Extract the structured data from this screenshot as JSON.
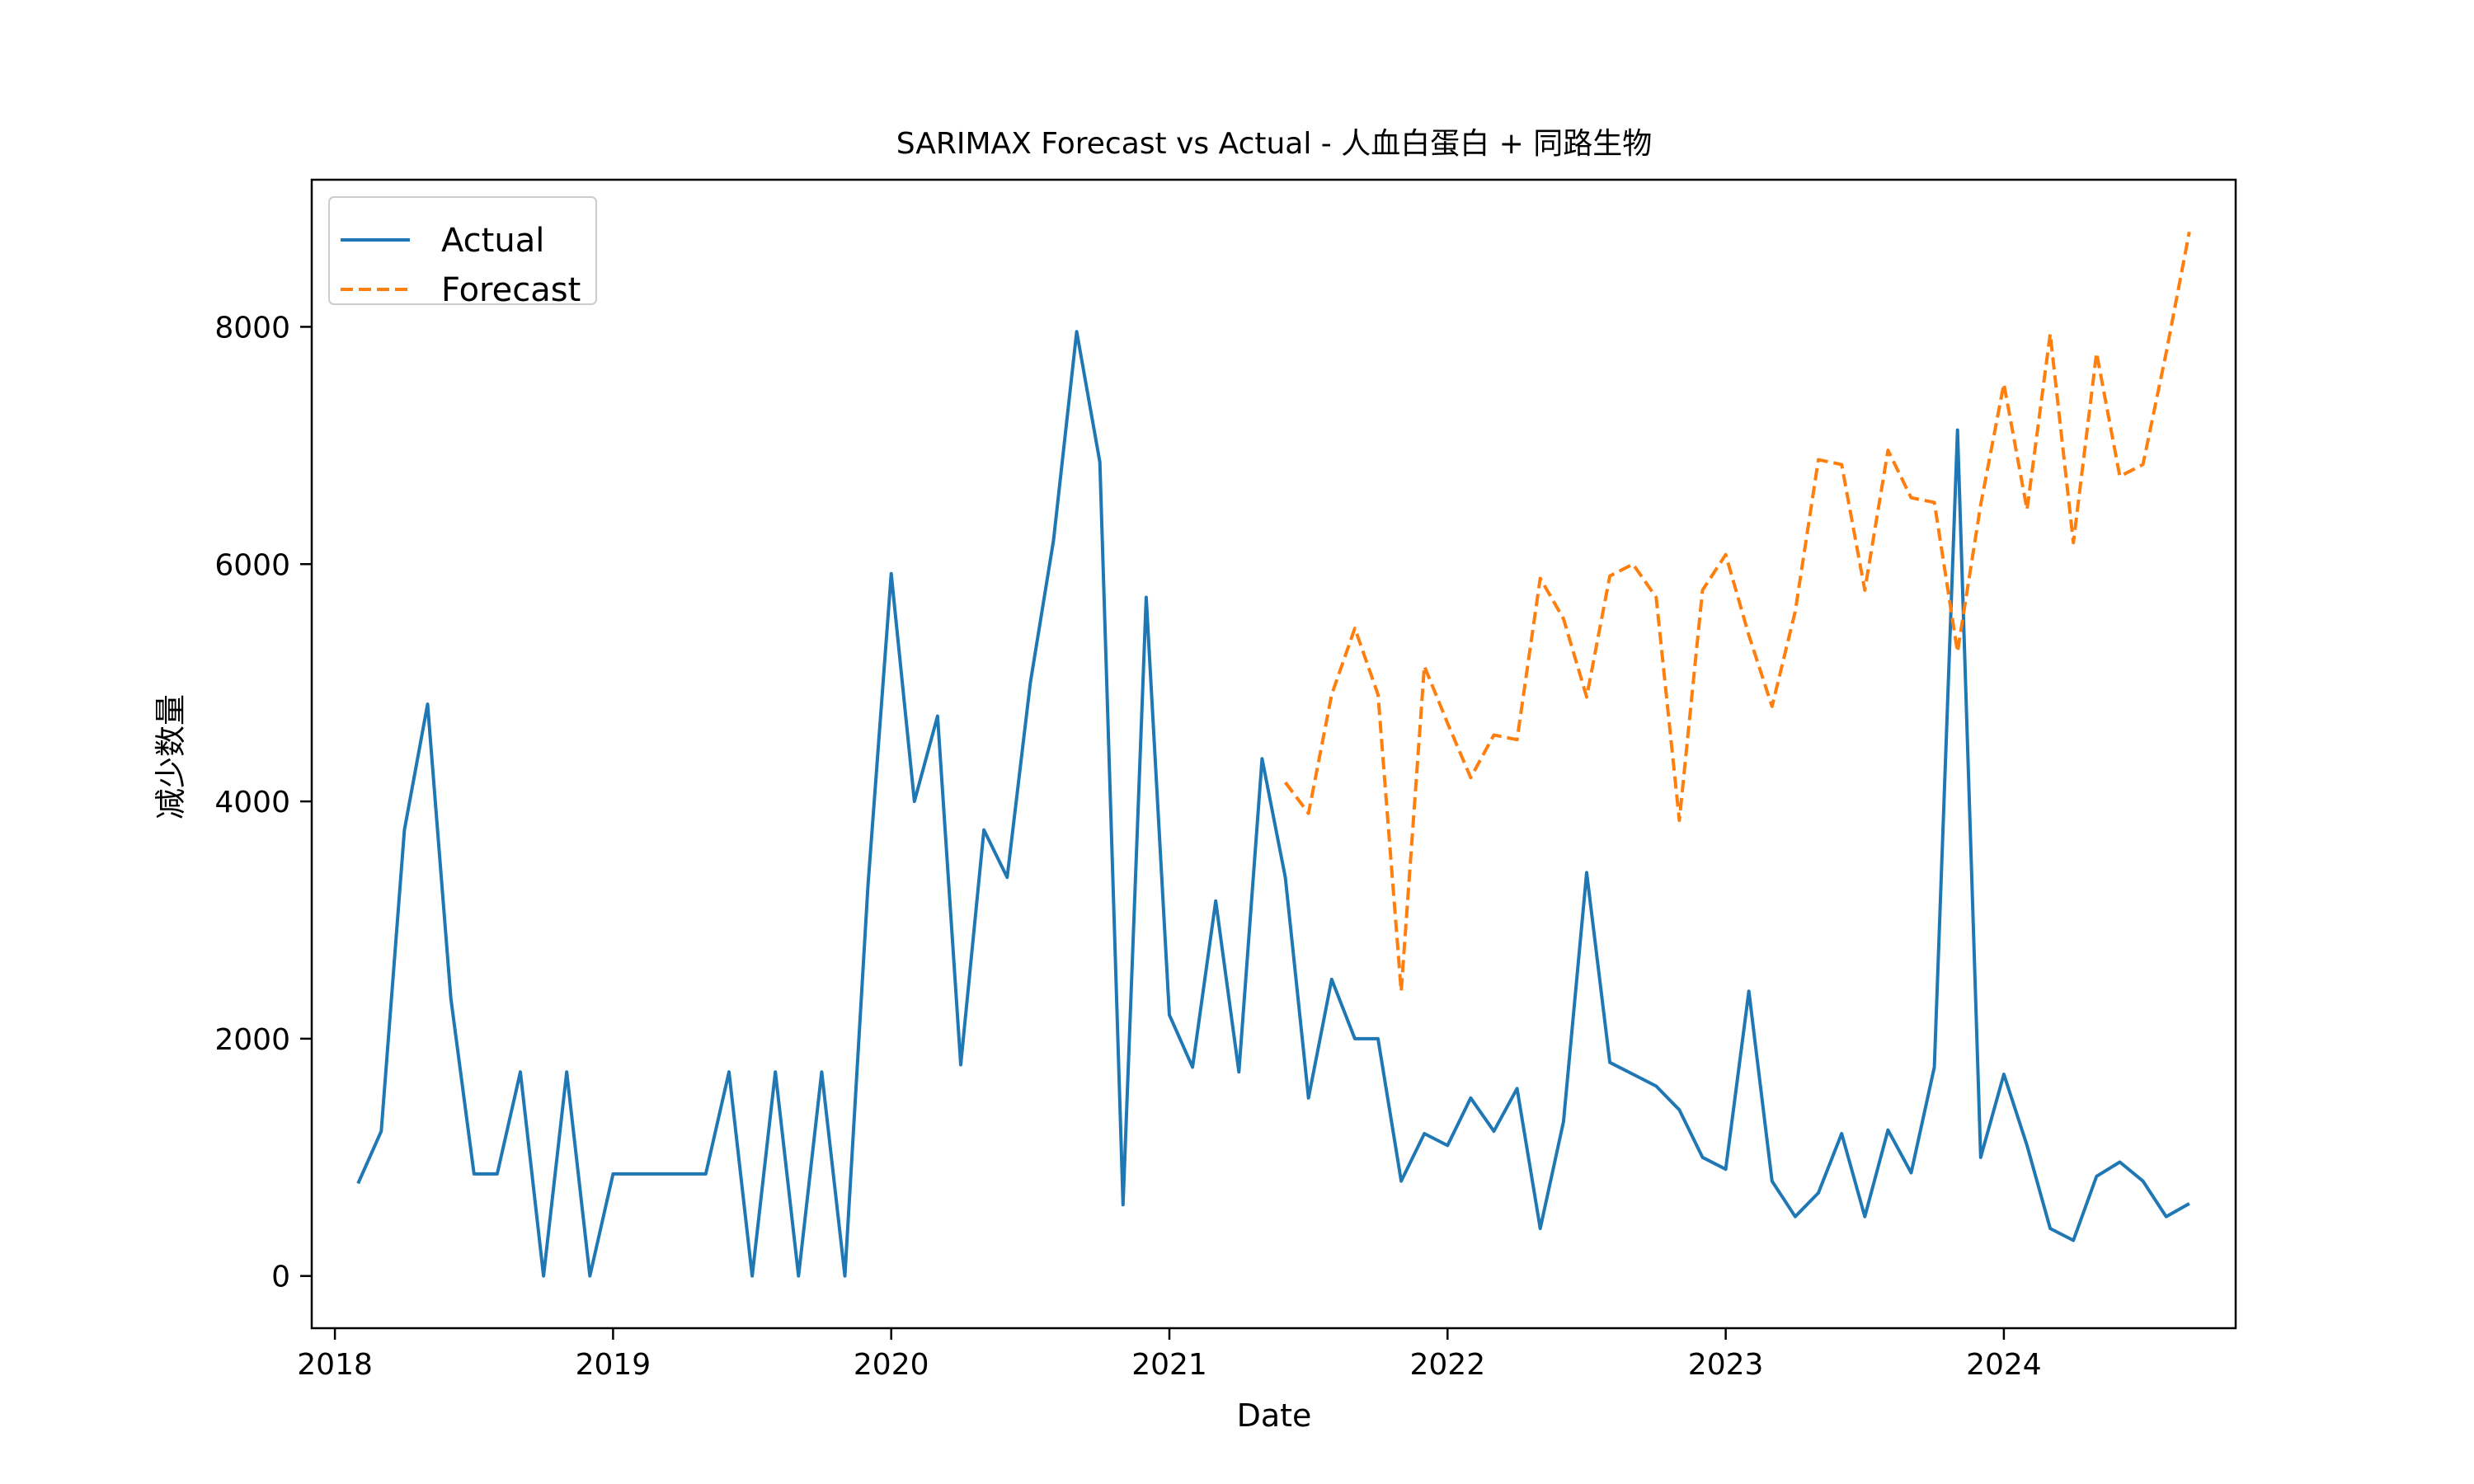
{
  "chart_data": {
    "type": "line",
    "title": "SARIMAX Forecast vs Actual - 人血白蛋白 + 同路生物",
    "xlabel": "Date",
    "ylabel": "减少数量",
    "x_tick_labels": [
      "2018",
      "2019",
      "2020",
      "2021",
      "2022",
      "2023",
      "2024"
    ],
    "y_ticks": [
      0,
      2000,
      4000,
      6000,
      8000
    ],
    "xlim": [
      "2017-12",
      "2024-11"
    ],
    "ylim": [
      -440,
      9240
    ],
    "grid": false,
    "legend_position": "top-left",
    "series": [
      {
        "name": "Actual",
        "style": "solid",
        "color": "#1f77b4",
        "points": [
          [
            "2018-02",
            780
          ],
          [
            "2018-03",
            1220
          ],
          [
            "2018-04",
            3760
          ],
          [
            "2018-05",
            4820
          ],
          [
            "2018-06",
            2340
          ],
          [
            "2018-07",
            860
          ],
          [
            "2018-08",
            860
          ],
          [
            "2018-09",
            1720
          ],
          [
            "2018-10",
            0
          ],
          [
            "2018-11",
            1720
          ],
          [
            "2018-12",
            0
          ],
          [
            "2019-01",
            860
          ],
          [
            "2019-02",
            860
          ],
          [
            "2019-03",
            860
          ],
          [
            "2019-04",
            860
          ],
          [
            "2019-05",
            860
          ],
          [
            "2019-06",
            1720
          ],
          [
            "2019-07",
            0
          ],
          [
            "2019-08",
            1720
          ],
          [
            "2019-09",
            0
          ],
          [
            "2019-10",
            1720
          ],
          [
            "2019-11",
            0
          ],
          [
            "2019-12",
            3300
          ],
          [
            "2020-01",
            5920
          ],
          [
            "2020-02",
            4000
          ],
          [
            "2020-03",
            4720
          ],
          [
            "2020-04",
            1780
          ],
          [
            "2020-05",
            3760
          ],
          [
            "2020-06",
            3360
          ],
          [
            "2020-07",
            5000
          ],
          [
            "2020-08",
            6200
          ],
          [
            "2020-09",
            7960
          ],
          [
            "2020-10",
            6860
          ],
          [
            "2020-11",
            600
          ],
          [
            "2020-12",
            5720
          ],
          [
            "2021-01",
            2200
          ],
          [
            "2021-02",
            1760
          ],
          [
            "2021-03",
            3160
          ],
          [
            "2021-04",
            1720
          ],
          [
            "2021-05",
            4360
          ],
          [
            "2021-06",
            3360
          ],
          [
            "2021-07",
            1500
          ],
          [
            "2021-08",
            2500
          ],
          [
            "2021-09",
            2000
          ],
          [
            "2021-10",
            2000
          ],
          [
            "2021-11",
            800
          ],
          [
            "2021-12",
            1200
          ],
          [
            "2022-01",
            1100
          ],
          [
            "2022-02",
            1500
          ],
          [
            "2022-03",
            1220
          ],
          [
            "2022-04",
            1580
          ],
          [
            "2022-05",
            400
          ],
          [
            "2022-06",
            1300
          ],
          [
            "2022-07",
            3400
          ],
          [
            "2022-08",
            1800
          ],
          [
            "2022-09",
            1700
          ],
          [
            "2022-10",
            1600
          ],
          [
            "2022-11",
            1400
          ],
          [
            "2022-12",
            1000
          ],
          [
            "2023-01",
            900
          ],
          [
            "2023-02",
            2400
          ],
          [
            "2023-03",
            800
          ],
          [
            "2023-04",
            500
          ],
          [
            "2023-05",
            700
          ],
          [
            "2023-06",
            1200
          ],
          [
            "2023-07",
            500
          ],
          [
            "2023-08",
            1230
          ],
          [
            "2023-09",
            870
          ],
          [
            "2023-10",
            1760
          ],
          [
            "2023-11",
            7130
          ],
          [
            "2023-12",
            1000
          ],
          [
            "2024-01",
            1700
          ],
          [
            "2024-02",
            1100
          ],
          [
            "2024-03",
            400
          ],
          [
            "2024-04",
            300
          ],
          [
            "2024-05",
            840
          ],
          [
            "2024-06",
            960
          ],
          [
            "2024-07",
            800
          ],
          [
            "2024-08",
            500
          ],
          [
            "2024-09",
            610
          ]
        ]
      },
      {
        "name": "Forecast",
        "style": "dashed",
        "color": "#ff7f0e",
        "points": [
          [
            "2021-06",
            4160
          ],
          [
            "2021-07",
            3900
          ],
          [
            "2021-08",
            4900
          ],
          [
            "2021-09",
            5460
          ],
          [
            "2021-10",
            4900
          ],
          [
            "2021-11",
            2400
          ],
          [
            "2021-12",
            5140
          ],
          [
            "2022-01",
            4660
          ],
          [
            "2022-02",
            4200
          ],
          [
            "2022-03",
            4560
          ],
          [
            "2022-04",
            4520
          ],
          [
            "2022-05",
            5880
          ],
          [
            "2022-06",
            5540
          ],
          [
            "2022-07",
            4880
          ],
          [
            "2022-08",
            5900
          ],
          [
            "2022-09",
            6000
          ],
          [
            "2022-10",
            5720
          ],
          [
            "2022-11",
            3840
          ],
          [
            "2022-12",
            5780
          ],
          [
            "2023-01",
            6080
          ],
          [
            "2023-02",
            5400
          ],
          [
            "2023-03",
            4800
          ],
          [
            "2023-04",
            5600
          ],
          [
            "2023-05",
            6880
          ],
          [
            "2023-06",
            6840
          ],
          [
            "2023-07",
            5780
          ],
          [
            "2023-08",
            6960
          ],
          [
            "2023-09",
            6560
          ],
          [
            "2023-10",
            6520
          ],
          [
            "2023-11",
            5260
          ],
          [
            "2023-12",
            6500
          ],
          [
            "2024-01",
            7520
          ],
          [
            "2024-02",
            6460
          ],
          [
            "2024-03",
            7940
          ],
          [
            "2024-04",
            6180
          ],
          [
            "2024-05",
            7780
          ],
          [
            "2024-06",
            6740
          ],
          [
            "2024-07",
            6840
          ],
          [
            "2024-08",
            7780
          ],
          [
            "2024-09",
            8800
          ]
        ]
      }
    ]
  }
}
